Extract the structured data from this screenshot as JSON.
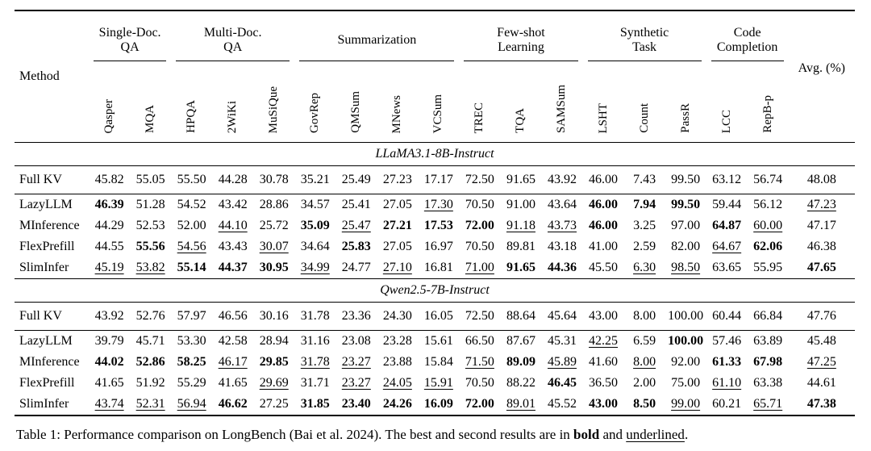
{
  "table": {
    "method_header": "Method",
    "avg_header": "Avg. (%)",
    "groups": [
      {
        "label": "Single-Doc.\nQA",
        "span": 2
      },
      {
        "label": "Multi-Doc.\nQA",
        "span": 3
      },
      {
        "label": "Summarization",
        "span": 4
      },
      {
        "label": "Few-shot\nLearning",
        "span": 3
      },
      {
        "label": "Synthetic\nTask",
        "span": 3
      },
      {
        "label": "Code\nCompletion",
        "span": 2
      }
    ],
    "columns": [
      "Qasper",
      "MQA",
      "HPQA",
      "2WiKi",
      "MuSiQue",
      "GovRep",
      "QMSum",
      "MNews",
      "VCSum",
      "TREC",
      "TQA",
      "SAMSum",
      "LSHT",
      "Count",
      "PassR",
      "LCC",
      "RepB-p"
    ],
    "sections": [
      {
        "title": "LLaMA3.1-8B-Instruct",
        "rows": [
          {
            "method": "Full KV",
            "values": [
              "45.82",
              "55.05",
              "55.50",
              "44.28",
              "30.78",
              "35.21",
              "25.49",
              "27.23",
              "17.17",
              "72.50",
              "91.65",
              "43.92",
              "46.00",
              "7.43",
              "99.50",
              "63.12",
              "56.74"
            ],
            "styles": [
              "",
              "",
              "",
              "",
              "",
              "",
              "",
              "",
              "",
              "",
              "",
              "",
              "",
              "",
              "",
              "",
              ""
            ],
            "avg": "48.08",
            "avg_style": ""
          },
          {
            "method": "LazyLLM",
            "values": [
              "46.39",
              "51.28",
              "54.52",
              "43.42",
              "28.86",
              "34.57",
              "25.41",
              "27.05",
              "17.30",
              "70.50",
              "91.00",
              "43.64",
              "46.00",
              "7.94",
              "99.50",
              "59.44",
              "56.12"
            ],
            "styles": [
              "b",
              "",
              "",
              "",
              "",
              "",
              "",
              "",
              "u",
              "",
              "",
              "",
              "b",
              "b",
              "b",
              "",
              ""
            ],
            "avg": "47.23",
            "avg_style": "u"
          },
          {
            "method": "MInference",
            "values": [
              "44.29",
              "52.53",
              "52.00",
              "44.10",
              "25.72",
              "35.09",
              "25.47",
              "27.21",
              "17.53",
              "72.00",
              "91.18",
              "43.73",
              "46.00",
              "3.25",
              "97.00",
              "64.87",
              "60.00"
            ],
            "styles": [
              "",
              "",
              "",
              "u",
              "",
              "b",
              "u",
              "b",
              "b",
              "b",
              "u",
              "u",
              "b",
              "",
              "",
              "b",
              "u"
            ],
            "avg": "47.17",
            "avg_style": ""
          },
          {
            "method": "FlexPrefill",
            "values": [
              "44.55",
              "55.56",
              "54.56",
              "43.43",
              "30.07",
              "34.64",
              "25.83",
              "27.05",
              "16.97",
              "70.50",
              "89.81",
              "43.18",
              "41.00",
              "2.59",
              "82.00",
              "64.67",
              "62.06"
            ],
            "styles": [
              "",
              "b",
              "u",
              "",
              "u",
              "",
              "b",
              "",
              "",
              "",
              "",
              "",
              "",
              "",
              "",
              "u",
              "b"
            ],
            "avg": "46.38",
            "avg_style": ""
          },
          {
            "method": "SlimInfer",
            "values": [
              "45.19",
              "53.82",
              "55.14",
              "44.37",
              "30.95",
              "34.99",
              "24.77",
              "27.10",
              "16.81",
              "71.00",
              "91.65",
              "44.36",
              "45.50",
              "6.30",
              "98.50",
              "63.65",
              "55.95"
            ],
            "styles": [
              "u",
              "u",
              "b",
              "b",
              "b",
              "u",
              "",
              "u",
              "",
              "u",
              "b",
              "b",
              "",
              "u",
              "u",
              "",
              ""
            ],
            "avg": "47.65",
            "avg_style": "b"
          }
        ]
      },
      {
        "title": "Qwen2.5-7B-Instruct",
        "rows": [
          {
            "method": "Full KV",
            "values": [
              "43.92",
              "52.76",
              "57.97",
              "46.56",
              "30.16",
              "31.78",
              "23.36",
              "24.30",
              "16.05",
              "72.50",
              "88.64",
              "45.64",
              "43.00",
              "8.00",
              "100.00",
              "60.44",
              "66.84"
            ],
            "styles": [
              "",
              "",
              "",
              "",
              "",
              "",
              "",
              "",
              "",
              "",
              "",
              "",
              "",
              "",
              "",
              "",
              ""
            ],
            "avg": "47.76",
            "avg_style": ""
          },
          {
            "method": "LazyLLM",
            "values": [
              "39.79",
              "45.71",
              "53.30",
              "42.58",
              "28.94",
              "31.16",
              "23.08",
              "23.28",
              "15.61",
              "66.50",
              "87.67",
              "45.31",
              "42.25",
              "6.59",
              "100.00",
              "57.46",
              "63.89"
            ],
            "styles": [
              "",
              "",
              "",
              "",
              "",
              "",
              "",
              "",
              "",
              "",
              "",
              "",
              "u",
              "",
              "b",
              "",
              ""
            ],
            "avg": "45.48",
            "avg_style": ""
          },
          {
            "method": "MInference",
            "values": [
              "44.02",
              "52.86",
              "58.25",
              "46.17",
              "29.85",
              "31.78",
              "23.27",
              "23.88",
              "15.84",
              "71.50",
              "89.09",
              "45.89",
              "41.60",
              "8.00",
              "92.00",
              "61.33",
              "67.98"
            ],
            "styles": [
              "b",
              "b",
              "b",
              "u",
              "b",
              "u",
              "u",
              "",
              "",
              "u",
              "b",
              "u",
              "",
              "u",
              "",
              "b",
              "b"
            ],
            "avg": "47.25",
            "avg_style": "u"
          },
          {
            "method": "FlexPrefill",
            "values": [
              "41.65",
              "51.92",
              "55.29",
              "41.65",
              "29.69",
              "31.71",
              "23.27",
              "24.05",
              "15.91",
              "70.50",
              "88.22",
              "46.45",
              "36.50",
              "2.00",
              "75.00",
              "61.10",
              "63.38"
            ],
            "styles": [
              "",
              "",
              "",
              "",
              "u",
              "",
              "u",
              "u",
              "u",
              "",
              "",
              "b",
              "",
              "",
              "",
              "u",
              ""
            ],
            "avg": "44.61",
            "avg_style": ""
          },
          {
            "method": "SlimInfer",
            "values": [
              "43.74",
              "52.31",
              "56.94",
              "46.62",
              "27.25",
              "31.85",
              "23.40",
              "24.26",
              "16.09",
              "72.00",
              "89.01",
              "45.52",
              "43.00",
              "8.50",
              "99.00",
              "60.21",
              "65.71"
            ],
            "styles": [
              "u",
              "u",
              "u",
              "b",
              "",
              "b",
              "b",
              "b",
              "b",
              "b",
              "u",
              "",
              "b",
              "b",
              "u",
              "",
              "u"
            ],
            "avg": "47.38",
            "avg_style": "b"
          }
        ]
      }
    ]
  },
  "caption": {
    "prefix": "Table 1: Performance comparison on LongBench (Bai et al. 2024). The best and second results are in ",
    "bold_word": "bold",
    "middle": " and ",
    "underlined_word": "underlined",
    "suffix": "."
  }
}
